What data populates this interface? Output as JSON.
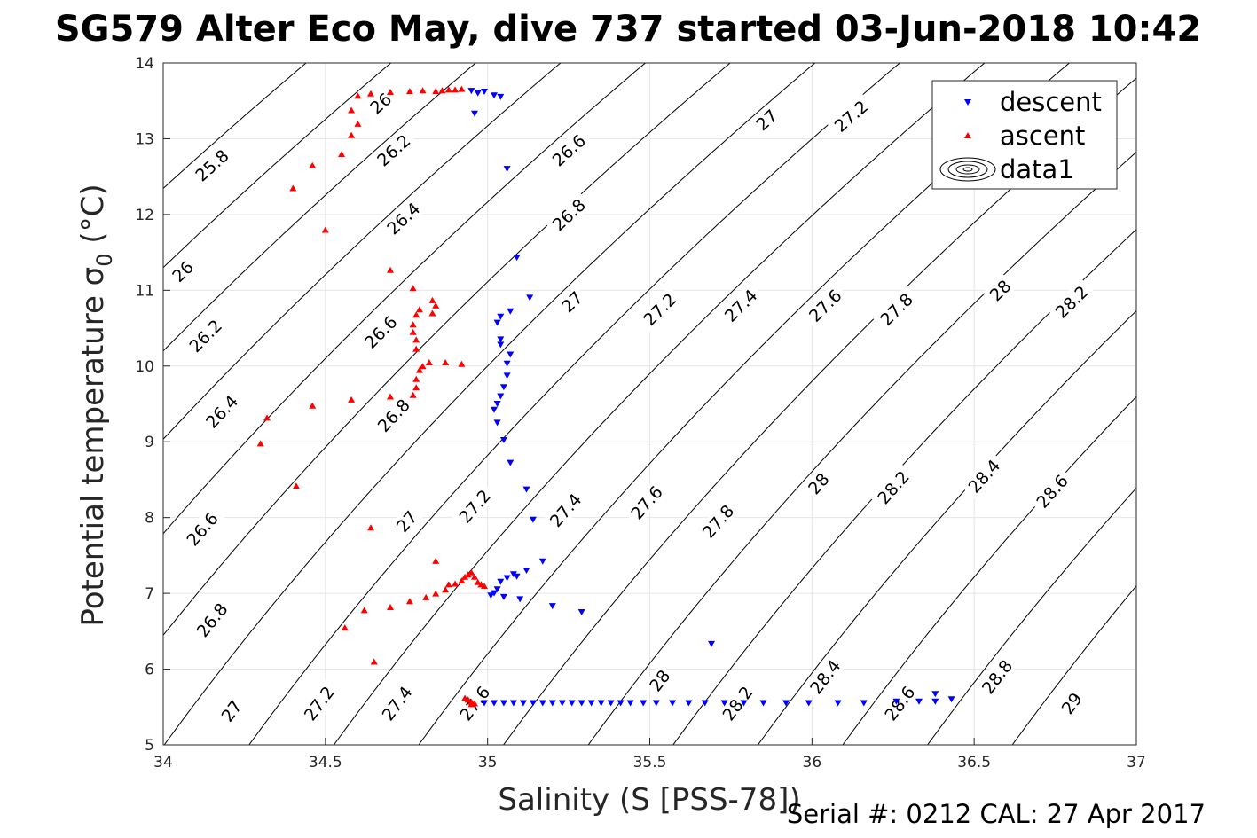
{
  "chart_data": {
    "type": "scatter",
    "title": "SG579 Alter Eco May, dive 737 started 03-Jun-2018 10:42",
    "xlabel": "Salinity (S [PSS-78])",
    "ylabel": "Potential temperature σ 0 (°C)",
    "xlim": [
      34,
      37
    ],
    "ylim": [
      5,
      14
    ],
    "xticks": [
      "34",
      "34.5",
      "35",
      "35.5",
      "36",
      "36.5",
      "37"
    ],
    "yticks": [
      "5",
      "6",
      "7",
      "8",
      "9",
      "10",
      "11",
      "12",
      "13",
      "14"
    ],
    "grid": true,
    "legend_position": "top-right",
    "footer": "Serial #: 0212  CAL: 27 Apr 2017",
    "legend": [
      {
        "label": "descent",
        "marker": "triangle-down",
        "color": "#0000ff"
      },
      {
        "label": "ascent",
        "marker": "triangle-up",
        "color": "#ff0000"
      },
      {
        "label": "data1",
        "marker": "contour-ellipses",
        "color": "#000000"
      }
    ],
    "contour_levels": [
      25.8,
      26,
      26.2,
      26.4,
      26.6,
      26.8,
      27,
      27.2,
      27.4,
      27.6,
      27.8,
      28,
      28.2,
      28.4,
      28.6,
      28.8,
      29
    ],
    "contour_labels": [
      {
        "text": "25.8",
        "x": 34.15,
        "y": 12.65
      },
      {
        "text": "26",
        "x": 34.06,
        "y": 11.25
      },
      {
        "text": "26.2",
        "x": 34.13,
        "y": 10.4
      },
      {
        "text": "26.4",
        "x": 34.18,
        "y": 9.4
      },
      {
        "text": "26.6",
        "x": 34.12,
        "y": 7.85
      },
      {
        "text": "26.8",
        "x": 34.15,
        "y": 6.65
      },
      {
        "text": "27",
        "x": 34.21,
        "y": 5.45
      },
      {
        "text": "26",
        "x": 34.67,
        "y": 13.47
      },
      {
        "text": "26.2",
        "x": 34.71,
        "y": 12.85
      },
      {
        "text": "26.4",
        "x": 34.74,
        "y": 11.95
      },
      {
        "text": "26.6",
        "x": 34.67,
        "y": 10.45
      },
      {
        "text": "26.8",
        "x": 34.71,
        "y": 9.35
      },
      {
        "text": "27",
        "x": 34.75,
        "y": 7.95
      },
      {
        "text": "27.2",
        "x": 34.48,
        "y": 5.55
      },
      {
        "text": "27.4",
        "x": 34.72,
        "y": 5.55
      },
      {
        "text": "27.2",
        "x": 34.96,
        "y": 8.15
      },
      {
        "text": "27.6",
        "x": 34.96,
        "y": 5.55
      },
      {
        "text": "26.6",
        "x": 35.25,
        "y": 12.85
      },
      {
        "text": "26.8",
        "x": 35.25,
        "y": 12.0
      },
      {
        "text": "27",
        "x": 35.26,
        "y": 10.85
      },
      {
        "text": "27.4",
        "x": 35.24,
        "y": 8.1
      },
      {
        "text": "27.6",
        "x": 35.49,
        "y": 8.2
      },
      {
        "text": "27.8",
        "x": 35.71,
        "y": 7.95
      },
      {
        "text": "27.2",
        "x": 35.53,
        "y": 10.75
      },
      {
        "text": "27.4",
        "x": 35.78,
        "y": 10.8
      },
      {
        "text": "27",
        "x": 35.86,
        "y": 13.25
      },
      {
        "text": "27.2",
        "x": 36.12,
        "y": 13.3
      },
      {
        "text": "27.6",
        "x": 36.04,
        "y": 10.8
      },
      {
        "text": "27.8",
        "x": 36.26,
        "y": 10.75
      },
      {
        "text": "28",
        "x": 35.53,
        "y": 5.85
      },
      {
        "text": "28.2",
        "x": 35.77,
        "y": 5.55
      },
      {
        "text": "28",
        "x": 36.02,
        "y": 8.45
      },
      {
        "text": "28.2",
        "x": 36.25,
        "y": 8.4
      },
      {
        "text": "28.4",
        "x": 36.04,
        "y": 5.9
      },
      {
        "text": "28.6",
        "x": 36.27,
        "y": 5.55
      },
      {
        "text": "28",
        "x": 36.58,
        "y": 11.0
      },
      {
        "text": "28.2",
        "x": 36.8,
        "y": 10.85
      },
      {
        "text": "28.4",
        "x": 36.53,
        "y": 8.55
      },
      {
        "text": "28.6",
        "x": 36.74,
        "y": 8.35
      },
      {
        "text": "28.8",
        "x": 36.57,
        "y": 5.9
      },
      {
        "text": "29",
        "x": 36.8,
        "y": 5.55
      }
    ],
    "series": [
      {
        "name": "descent",
        "marker": "triangle-down",
        "color": "#0000ff",
        "points": [
          [
            34.95,
            13.63
          ],
          [
            34.97,
            13.6
          ],
          [
            34.99,
            13.62
          ],
          [
            35.02,
            13.57
          ],
          [
            35.04,
            13.55
          ],
          [
            34.96,
            13.33
          ],
          [
            35.06,
            12.6
          ],
          [
            35.09,
            11.43
          ],
          [
            35.13,
            10.9
          ],
          [
            35.07,
            10.72
          ],
          [
            35.04,
            10.65
          ],
          [
            35.03,
            10.57
          ],
          [
            35.04,
            10.35
          ],
          [
            35.04,
            10.28
          ],
          [
            35.07,
            10.15
          ],
          [
            35.06,
            10.03
          ],
          [
            35.06,
            9.87
          ],
          [
            35.05,
            9.72
          ],
          [
            35.04,
            9.6
          ],
          [
            35.03,
            9.5
          ],
          [
            35.02,
            9.42
          ],
          [
            35.03,
            9.25
          ],
          [
            35.05,
            9.02
          ],
          [
            35.07,
            8.72
          ],
          [
            35.12,
            8.37
          ],
          [
            35.14,
            7.97
          ],
          [
            35.17,
            7.42
          ],
          [
            35.12,
            7.3
          ],
          [
            35.09,
            7.22
          ],
          [
            35.08,
            7.25
          ],
          [
            35.06,
            7.2
          ],
          [
            35.04,
            7.15
          ],
          [
            35.03,
            7.05
          ],
          [
            35.02,
            7.0
          ],
          [
            35.01,
            6.97
          ],
          [
            35.05,
            6.95
          ],
          [
            35.1,
            6.92
          ],
          [
            35.2,
            6.83
          ],
          [
            35.29,
            6.75
          ],
          [
            35.69,
            6.33
          ],
          [
            34.99,
            5.55
          ],
          [
            35.02,
            5.55
          ],
          [
            35.05,
            5.55
          ],
          [
            35.08,
            5.55
          ],
          [
            35.11,
            5.55
          ],
          [
            35.14,
            5.55
          ],
          [
            35.17,
            5.55
          ],
          [
            35.2,
            5.55
          ],
          [
            35.23,
            5.55
          ],
          [
            35.26,
            5.55
          ],
          [
            35.29,
            5.55
          ],
          [
            35.32,
            5.55
          ],
          [
            35.35,
            5.55
          ],
          [
            35.38,
            5.55
          ],
          [
            35.41,
            5.55
          ],
          [
            35.44,
            5.55
          ],
          [
            35.48,
            5.55
          ],
          [
            35.52,
            5.55
          ],
          [
            35.57,
            5.55
          ],
          [
            35.62,
            5.55
          ],
          [
            35.67,
            5.55
          ],
          [
            35.73,
            5.55
          ],
          [
            35.79,
            5.55
          ],
          [
            35.85,
            5.55
          ],
          [
            35.92,
            5.55
          ],
          [
            35.99,
            5.55
          ],
          [
            36.08,
            5.55
          ],
          [
            36.16,
            5.55
          ],
          [
            36.26,
            5.57
          ],
          [
            36.33,
            5.57
          ],
          [
            36.38,
            5.57
          ],
          [
            36.38,
            5.67
          ],
          [
            36.43,
            5.6
          ]
        ]
      },
      {
        "name": "ascent",
        "marker": "triangle-up",
        "color": "#ff0000",
        "points": [
          [
            34.6,
            13.57
          ],
          [
            34.64,
            13.6
          ],
          [
            34.7,
            13.62
          ],
          [
            34.76,
            13.63
          ],
          [
            34.8,
            13.64
          ],
          [
            34.84,
            13.63
          ],
          [
            34.86,
            13.64
          ],
          [
            34.88,
            13.65
          ],
          [
            34.9,
            13.65
          ],
          [
            34.92,
            13.66
          ],
          [
            34.58,
            13.38
          ],
          [
            34.6,
            13.2
          ],
          [
            34.58,
            13.05
          ],
          [
            34.55,
            12.8
          ],
          [
            34.46,
            12.65
          ],
          [
            34.4,
            12.35
          ],
          [
            34.5,
            11.8
          ],
          [
            34.7,
            11.27
          ],
          [
            34.77,
            11.03
          ],
          [
            34.79,
            10.75
          ],
          [
            34.78,
            10.68
          ],
          [
            34.77,
            10.55
          ],
          [
            34.77,
            10.45
          ],
          [
            34.78,
            10.35
          ],
          [
            34.78,
            10.23
          ],
          [
            34.83,
            10.87
          ],
          [
            34.84,
            10.8
          ],
          [
            34.83,
            10.7
          ],
          [
            34.82,
            10.05
          ],
          [
            34.8,
            10.0
          ],
          [
            34.79,
            9.95
          ],
          [
            34.78,
            9.83
          ],
          [
            34.78,
            9.72
          ],
          [
            34.77,
            9.62
          ],
          [
            34.87,
            10.05
          ],
          [
            34.92,
            10.03
          ],
          [
            34.46,
            9.48
          ],
          [
            34.58,
            9.56
          ],
          [
            34.7,
            9.6
          ],
          [
            34.32,
            9.32
          ],
          [
            34.3,
            8.98
          ],
          [
            34.41,
            8.42
          ],
          [
            34.64,
            7.87
          ],
          [
            34.84,
            7.43
          ],
          [
            34.87,
            7.05
          ],
          [
            34.84,
            7.0
          ],
          [
            34.81,
            6.95
          ],
          [
            34.76,
            6.9
          ],
          [
            34.7,
            6.82
          ],
          [
            34.62,
            6.78
          ],
          [
            34.56,
            6.55
          ],
          [
            34.65,
            6.1
          ],
          [
            34.88,
            7.12
          ],
          [
            34.9,
            7.13
          ],
          [
            34.92,
            7.17
          ],
          [
            34.93,
            7.22
          ],
          [
            34.94,
            7.25
          ],
          [
            34.95,
            7.28
          ],
          [
            34.96,
            7.22
          ],
          [
            34.97,
            7.15
          ],
          [
            34.98,
            7.12
          ],
          [
            34.99,
            7.1
          ],
          [
            34.93,
            5.62
          ],
          [
            34.94,
            5.6
          ],
          [
            34.95,
            5.57
          ],
          [
            34.96,
            5.55
          ],
          [
            34.95,
            5.54
          ]
        ]
      }
    ]
  }
}
